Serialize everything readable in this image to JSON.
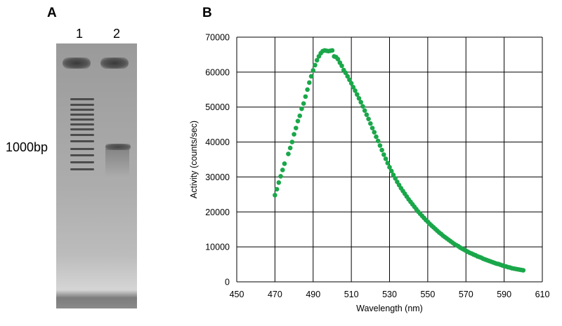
{
  "panel_a": {
    "label": "A",
    "lanes": [
      "1",
      "2"
    ],
    "marker_label": "1000bp"
  },
  "panel_b": {
    "label": "B"
  },
  "chart_data": {
    "type": "scatter",
    "title": "",
    "xlabel": "Wavelength (nm)",
    "ylabel": "Activity (counts/sec)",
    "xlim": [
      450,
      610
    ],
    "ylim": [
      0,
      70000
    ],
    "x_ticks": [
      450,
      470,
      490,
      510,
      530,
      550,
      570,
      590,
      610
    ],
    "y_ticks": [
      0,
      10000,
      20000,
      30000,
      40000,
      50000,
      60000,
      70000
    ],
    "grid": true,
    "marker_color": "#1aa74a",
    "series": [
      {
        "points": [
          [
            470,
            24800
          ],
          [
            471,
            26500
          ],
          [
            472,
            28400
          ],
          [
            473,
            30200
          ],
          [
            474,
            32000
          ],
          [
            475,
            33800
          ],
          [
            477,
            36600
          ],
          [
            478,
            38300
          ],
          [
            479,
            40000
          ],
          [
            480,
            42200
          ],
          [
            481,
            44000
          ],
          [
            482,
            46000
          ],
          [
            483,
            47500
          ],
          [
            484,
            49500
          ],
          [
            485,
            51000
          ],
          [
            486,
            53000
          ],
          [
            487,
            55000
          ],
          [
            488,
            57000
          ],
          [
            489,
            58800
          ],
          [
            490,
            60500
          ],
          [
            491,
            62000
          ],
          [
            492,
            63400
          ],
          [
            493,
            64500
          ],
          [
            494,
            65400
          ],
          [
            495,
            66000
          ],
          [
            496,
            66200
          ],
          [
            497,
            66100
          ],
          [
            498,
            66000
          ],
          [
            499,
            66100
          ],
          [
            500,
            66200
          ],
          [
            501,
            64500
          ],
          [
            502,
            64300
          ],
          [
            503,
            63700
          ],
          [
            504,
            62700
          ],
          [
            505,
            61800
          ],
          [
            506,
            60600
          ],
          [
            507,
            59800
          ],
          [
            508,
            58800
          ],
          [
            509,
            57800
          ],
          [
            510,
            56800
          ],
          [
            511,
            55700
          ],
          [
            512,
            54700
          ],
          [
            513,
            53600
          ],
          [
            514,
            52500
          ],
          [
            515,
            51400
          ],
          [
            516,
            50200
          ],
          [
            517,
            49000
          ],
          [
            518,
            47800
          ],
          [
            519,
            46600
          ],
          [
            520,
            45300
          ],
          [
            521,
            44000
          ],
          [
            522,
            42800
          ],
          [
            523,
            41500
          ],
          [
            524,
            40300
          ],
          [
            525,
            39000
          ],
          [
            526,
            37700
          ],
          [
            527,
            36400
          ],
          [
            528,
            35200
          ],
          [
            529,
            34000
          ],
          [
            530,
            32800
          ],
          [
            531,
            31700
          ],
          [
            532,
            30600
          ],
          [
            533,
            29600
          ],
          [
            534,
            28600
          ],
          [
            535,
            27700
          ],
          [
            536,
            26800
          ],
          [
            537,
            26000
          ],
          [
            538,
            25200
          ],
          [
            539,
            24400
          ],
          [
            540,
            23600
          ],
          [
            541,
            22900
          ],
          [
            542,
            22200
          ],
          [
            543,
            21500
          ],
          [
            544,
            20800
          ],
          [
            545,
            20100
          ],
          [
            546,
            19500
          ],
          [
            547,
            18900
          ],
          [
            548,
            18300
          ],
          [
            549,
            17700
          ],
          [
            550,
            17200
          ],
          [
            551,
            16600
          ],
          [
            552,
            16100
          ],
          [
            553,
            15600
          ],
          [
            554,
            15100
          ],
          [
            555,
            14600
          ],
          [
            556,
            14100
          ],
          [
            557,
            13700
          ],
          [
            558,
            13200
          ],
          [
            559,
            12800
          ],
          [
            560,
            12400
          ],
          [
            561,
            12000
          ],
          [
            562,
            11600
          ],
          [
            563,
            11200
          ],
          [
            564,
            10800
          ],
          [
            565,
            10500
          ],
          [
            566,
            10200
          ],
          [
            567,
            9800
          ],
          [
            568,
            9500
          ],
          [
            569,
            9200
          ],
          [
            570,
            8900
          ],
          [
            571,
            8600
          ],
          [
            572,
            8300
          ],
          [
            573,
            8100
          ],
          [
            574,
            7800
          ],
          [
            575,
            7600
          ],
          [
            576,
            7300
          ],
          [
            577,
            7100
          ],
          [
            578,
            6900
          ],
          [
            579,
            6600
          ],
          [
            580,
            6400
          ],
          [
            581,
            6200
          ],
          [
            582,
            6000
          ],
          [
            583,
            5800
          ],
          [
            584,
            5600
          ],
          [
            585,
            5400
          ],
          [
            586,
            5200
          ],
          [
            587,
            5100
          ],
          [
            588,
            4900
          ],
          [
            589,
            4700
          ],
          [
            590,
            4500
          ],
          [
            591,
            4400
          ],
          [
            592,
            4200
          ],
          [
            593,
            4100
          ],
          [
            594,
            3900
          ],
          [
            595,
            3800
          ],
          [
            596,
            3700
          ],
          [
            597,
            3600
          ],
          [
            598,
            3500
          ],
          [
            599,
            3400
          ],
          [
            600,
            3300
          ]
        ]
      }
    ]
  }
}
